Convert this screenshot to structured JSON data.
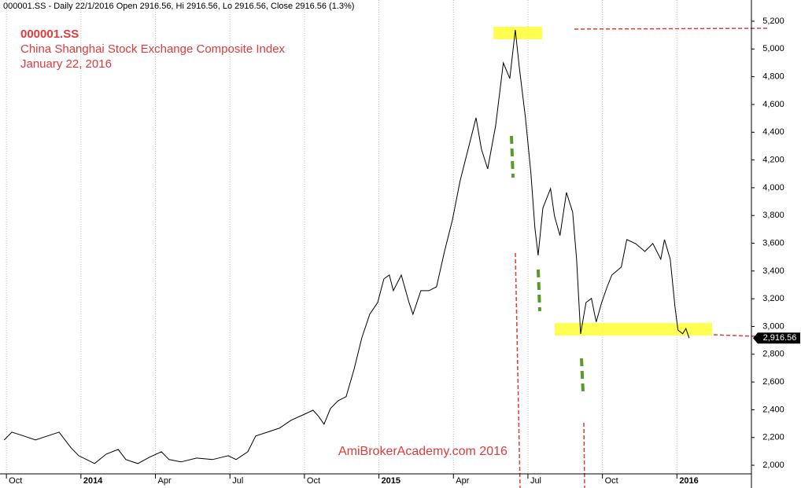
{
  "chart_data": {
    "type": "line",
    "header": "000001.SS - Daily 22/1/2016 Open 2916.56, Hi 2916.56, Lo 2916.56, Close 2916.56 (1.3%)",
    "title": "000001.SS",
    "subtitle": "China Shanghai Stock Exchange Composite Index",
    "date_label": "January 22, 2016",
    "watermark": "AmiBrokerAcademy.com  2016",
    "last_price": {
      "value": 2916.56,
      "label": "2,916.56"
    },
    "grid": true,
    "xlim": [
      -0.1,
      30
    ],
    "ylim": [
      1938,
      5353
    ],
    "xticks": [
      {
        "value": 0,
        "label": "Oct"
      },
      {
        "value": 3,
        "label": "2014"
      },
      {
        "value": 6,
        "label": "Apr"
      },
      {
        "value": 9,
        "label": "Jul"
      },
      {
        "value": 12,
        "label": "Oct"
      },
      {
        "value": 15,
        "label": "2015"
      },
      {
        "value": 18,
        "label": "Apr"
      },
      {
        "value": 21,
        "label": "Jul"
      },
      {
        "value": 24,
        "label": "Oct"
      },
      {
        "value": 27,
        "label": "2016"
      }
    ],
    "yticks": [
      {
        "value": 2000,
        "label": "2,000"
      },
      {
        "value": 2200,
        "label": "2,200"
      },
      {
        "value": 2400,
        "label": "2,400"
      },
      {
        "value": 2600,
        "label": "2,600"
      },
      {
        "value": 2800,
        "label": "2,800"
      },
      {
        "value": 3000,
        "label": "3,000"
      },
      {
        "value": 3200,
        "label": "3,200"
      },
      {
        "value": 3400,
        "label": "3,400"
      },
      {
        "value": 3600,
        "label": "3,600"
      },
      {
        "value": 3800,
        "label": "3,800"
      },
      {
        "value": 4000,
        "label": "4,000"
      },
      {
        "value": 4200,
        "label": "4,200"
      },
      {
        "value": 4400,
        "label": "4,400"
      },
      {
        "value": 4600,
        "label": "4,600"
      },
      {
        "value": 4800,
        "label": "4,800"
      },
      {
        "value": 5000,
        "label": "5,000"
      },
      {
        "value": 5200,
        "label": "5,200"
      }
    ],
    "x": [
      -0.09,
      0.22,
      0.7,
      1.17,
      1.65,
      2.12,
      2.6,
      2.91,
      3.23,
      3.55,
      4.02,
      4.5,
      4.81,
      5.29,
      5.76,
      6.24,
      6.55,
      7.03,
      7.66,
      8.3,
      8.93,
      9.25,
      9.72,
      10.04,
      10.51,
      10.99,
      11.46,
      11.94,
      12.35,
      12.57,
      12.79,
      13.05,
      13.36,
      13.68,
      14.0,
      14.31,
      14.63,
      14.95,
      15.2,
      15.42,
      15.58,
      15.9,
      16.21,
      16.37,
      16.69,
      17.01,
      17.32,
      17.64,
      17.96,
      18.27,
      18.59,
      18.91,
      19.13,
      19.38,
      19.7,
      20.01,
      20.27,
      20.49,
      20.65,
      20.9,
      21.12,
      21.28,
      21.41,
      21.6,
      21.91,
      22.07,
      22.29,
      22.55,
      22.8,
      22.96,
      23.12,
      23.34,
      23.56,
      23.75,
      23.97,
      24.19,
      24.38,
      24.76,
      24.98,
      25.33,
      25.71,
      26.03,
      26.35,
      26.5,
      26.73,
      26.92,
      27.04,
      27.23,
      27.36,
      27.49
    ],
    "series": [
      {
        "name": "000001.SS",
        "color": "#000000",
        "values": [
          2182,
          2239,
          2211,
          2182,
          2211,
          2239,
          2126,
          2069,
          2041,
          2012,
          2080,
          2114,
          2041,
          2012,
          2058,
          2097,
          2041,
          2024,
          2052,
          2041,
          2069,
          2041,
          2097,
          2211,
          2239,
          2267,
          2324,
          2363,
          2397,
          2352,
          2296,
          2409,
          2465,
          2494,
          2692,
          2918,
          3088,
          3173,
          3343,
          3371,
          3258,
          3371,
          3173,
          3088,
          3258,
          3258,
          3286,
          3541,
          3768,
          4051,
          4277,
          4504,
          4277,
          4136,
          4447,
          4900,
          4787,
          5138,
          4872,
          4504,
          4107,
          3711,
          3513,
          3853,
          3994,
          3796,
          3655,
          3966,
          3824,
          3485,
          2947,
          3173,
          3202,
          3032,
          3173,
          3286,
          3371,
          3428,
          3626,
          3598,
          3541,
          3598,
          3485,
          3626,
          3485,
          3145,
          2975,
          2947,
          2986,
          2916.56
        ]
      }
    ]
  }
}
